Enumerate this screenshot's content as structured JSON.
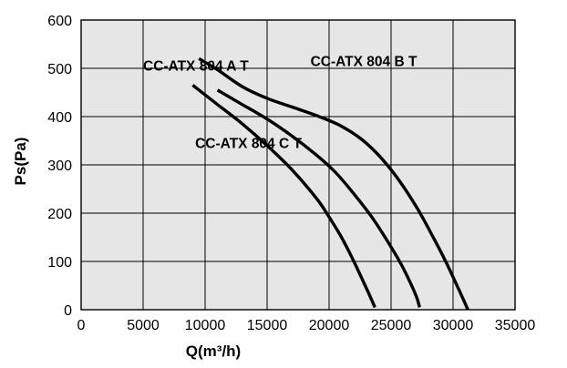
{
  "chart_data": {
    "type": "line",
    "title": "",
    "xlabel": "Q(m³/h)",
    "ylabel": "Ps(Pa)",
    "xlim": [
      0,
      35000
    ],
    "ylim": [
      0,
      600
    ],
    "x_ticks": [
      "0",
      "5000",
      "10000",
      "15000",
      "20000",
      "25000",
      "30000",
      "35000"
    ],
    "y_ticks": [
      "0",
      "100",
      "200",
      "300",
      "400",
      "500",
      "600"
    ],
    "grid": true,
    "grid_color": "#000000",
    "plot_background": "#e6e6e6",
    "series": [
      {
        "name": "CC-ATX 804 A T",
        "color": "#000000",
        "points": [
          [
            9000,
            465
          ],
          [
            11000,
            425
          ],
          [
            13000,
            385
          ],
          [
            15000,
            340
          ],
          [
            17000,
            290
          ],
          [
            19000,
            230
          ],
          [
            20000,
            192
          ],
          [
            21000,
            150
          ],
          [
            22000,
            100
          ],
          [
            23000,
            45
          ],
          [
            23700,
            5
          ]
        ]
      },
      {
        "name": "CC-ATX 804 B T",
        "color": "#000000",
        "points": [
          [
            9500,
            520
          ],
          [
            11000,
            497
          ],
          [
            13000,
            462
          ],
          [
            15000,
            438
          ],
          [
            17000,
            420
          ],
          [
            19000,
            402
          ],
          [
            21000,
            380
          ],
          [
            23000,
            345
          ],
          [
            25000,
            290
          ],
          [
            27000,
            215
          ],
          [
            28500,
            145
          ],
          [
            29500,
            95
          ],
          [
            30500,
            40
          ],
          [
            31200,
            0
          ]
        ]
      },
      {
        "name": "CC-ATX 804 C T",
        "color": "#000000",
        "points": [
          [
            11000,
            455
          ],
          [
            13000,
            425
          ],
          [
            15000,
            395
          ],
          [
            17000,
            360
          ],
          [
            19000,
            320
          ],
          [
            20500,
            285
          ],
          [
            22000,
            240
          ],
          [
            23500,
            190
          ],
          [
            25000,
            130
          ],
          [
            26000,
            85
          ],
          [
            27000,
            30
          ],
          [
            27300,
            5
          ]
        ]
      }
    ],
    "annotations": [
      {
        "text": "CC-ATX 804 A T",
        "series": 0,
        "x": 5000,
        "y": 495
      },
      {
        "text": "CC-ATX 804 B T",
        "series": 1,
        "x": 18500,
        "y": 505
      },
      {
        "text": "CC-ATX 804 C T",
        "series": 2,
        "x": 9200,
        "y": 335
      }
    ]
  }
}
